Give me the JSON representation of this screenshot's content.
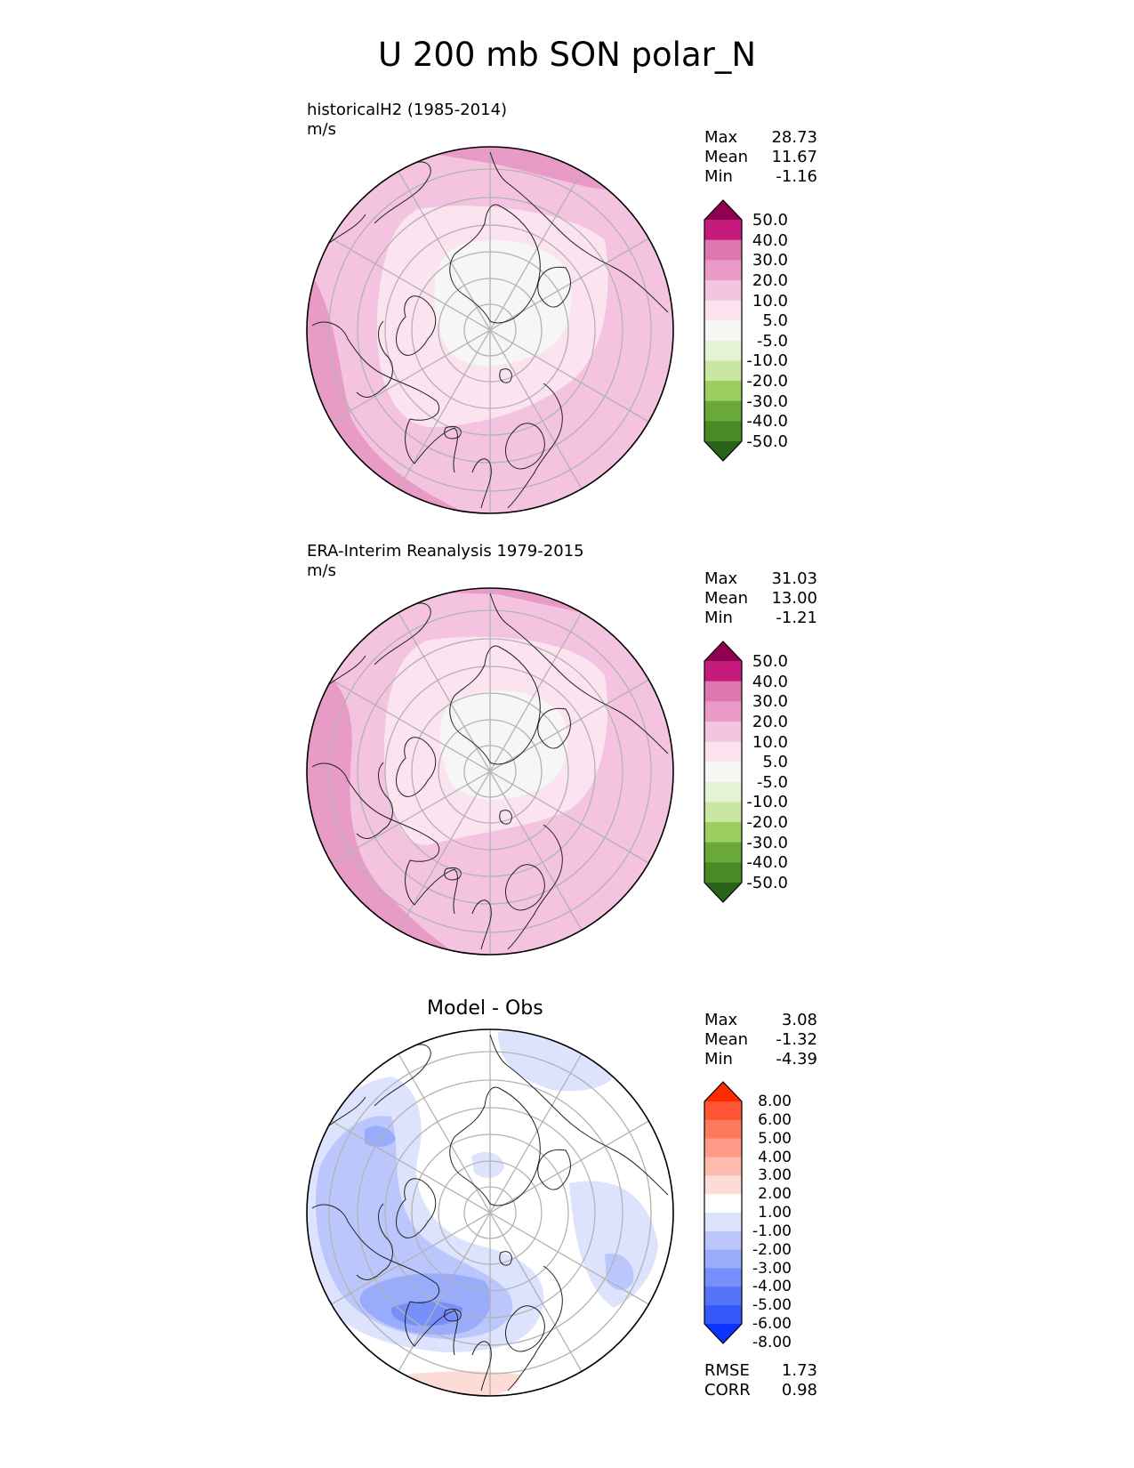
{
  "title": "U 200 mb SON polar_N",
  "panels": [
    {
      "label": "historicalH2 (1985-2014)",
      "units": "m/s",
      "stats": {
        "Max": "28.73",
        "Mean": "11.67",
        "Min": "-1.16"
      },
      "colorbar": {
        "ticks": [
          "50.0",
          "40.0",
          "30.0",
          "20.0",
          "10.0",
          "5.0",
          "-5.0",
          "-10.0",
          "-20.0",
          "-30.0",
          "-40.0",
          "-50.0"
        ],
        "colors": [
          "#8e0152",
          "#c51b7d",
          "#de77ae",
          "#e99bc7",
          "#f3c3df",
          "#fbe3ef",
          "#f6f6f4",
          "#e6f2d5",
          "#c9e7a2",
          "#9ccd60",
          "#6aa83a",
          "#4a8a24",
          "#276419"
        ]
      }
    },
    {
      "label": "ERA-Interim Reanalysis 1979-2015",
      "units": "m/s",
      "stats": {
        "Max": "31.03",
        "Mean": "13.00",
        "Min": "-1.21"
      },
      "colorbar": {
        "ticks": [
          "50.0",
          "40.0",
          "30.0",
          "20.0",
          "10.0",
          "5.0",
          "-5.0",
          "-10.0",
          "-20.0",
          "-30.0",
          "-40.0",
          "-50.0"
        ],
        "colors": [
          "#8e0152",
          "#c51b7d",
          "#de77ae",
          "#e99bc7",
          "#f3c3df",
          "#fbe3ef",
          "#f6f6f4",
          "#e6f2d5",
          "#c9e7a2",
          "#9ccd60",
          "#6aa83a",
          "#4a8a24",
          "#276419"
        ]
      }
    },
    {
      "label": "Model - Obs",
      "stats": {
        "Max": "3.08",
        "Mean": "-1.32",
        "Min": "-4.39"
      },
      "extra_stats": {
        "RMSE": "1.73",
        "CORR": "0.98"
      },
      "colorbar": {
        "ticks": [
          "8.00",
          "6.00",
          "5.00",
          "4.00",
          "3.00",
          "2.00",
          "1.00",
          "-1.00",
          "-2.00",
          "-3.00",
          "-4.00",
          "-5.00",
          "-6.00",
          "-8.00"
        ],
        "colors": [
          "#ff2a00",
          "#ff5533",
          "#fe7a5f",
          "#fe9a86",
          "#fdbcad",
          "#fddcd5",
          "#ffffff",
          "#dde3fd",
          "#bbc7fc",
          "#99abfb",
          "#778ffa",
          "#5573f9",
          "#3357f8",
          "#0b33ff"
        ]
      }
    }
  ],
  "chart_data": [
    {
      "type": "heatmap",
      "title": "historicalH2 (1985-2014)",
      "projection": "north polar stereographic",
      "units": "m/s",
      "levels": [
        -50,
        -40,
        -30,
        -20,
        -10,
        -5,
        5,
        10,
        20,
        30,
        40,
        50
      ],
      "stats": {
        "max": 28.73,
        "mean": 11.67,
        "min": -1.16
      }
    },
    {
      "type": "heatmap",
      "title": "ERA-Interim Reanalysis 1979-2015",
      "projection": "north polar stereographic",
      "units": "m/s",
      "levels": [
        -50,
        -40,
        -30,
        -20,
        -10,
        -5,
        5,
        10,
        20,
        30,
        40,
        50
      ],
      "stats": {
        "max": 31.03,
        "mean": 13.0,
        "min": -1.21
      }
    },
    {
      "type": "heatmap",
      "title": "Model - Obs",
      "projection": "north polar stereographic",
      "levels": [
        -8,
        -6,
        -5,
        -4,
        -3,
        -2,
        -1,
        1,
        2,
        3,
        4,
        5,
        6,
        8
      ],
      "stats": {
        "max": 3.08,
        "mean": -1.32,
        "min": -4.39,
        "rmse": 1.73,
        "corr": 0.98
      }
    }
  ]
}
